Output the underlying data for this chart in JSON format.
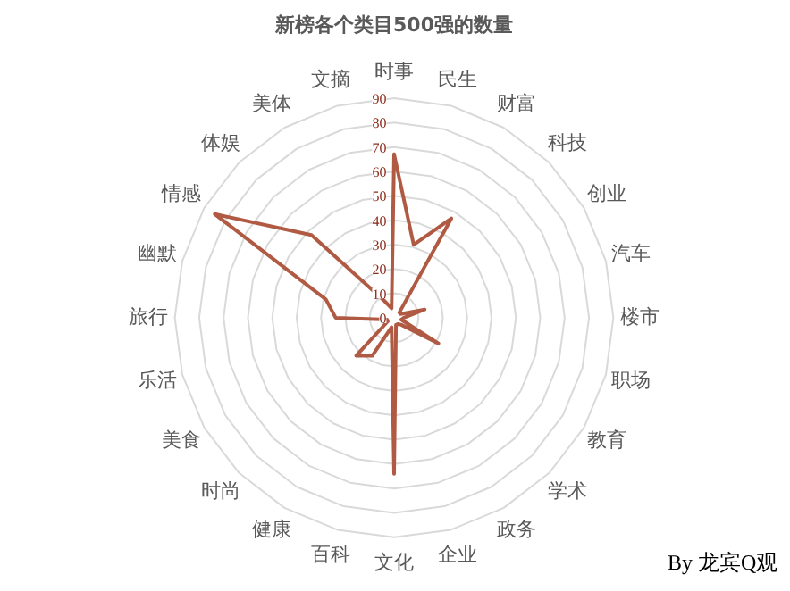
{
  "chart_data": {
    "type": "radar",
    "title": "新榜各个类目500强的数量",
    "categories": [
      "时事",
      "民生",
      "财富",
      "科技",
      "创业",
      "汽车",
      "楼市",
      "职场",
      "教育",
      "学术",
      "政务",
      "企业",
      "文化",
      "百科",
      "健康",
      "时尚",
      "美食",
      "乐活",
      "旅行",
      "幽默",
      "情感",
      "体娱",
      "美体",
      "文摘"
    ],
    "series": [
      {
        "color": "#b05a43",
        "values": [
          67,
          31,
          47,
          3,
          3,
          13,
          4,
          3,
          21,
          4,
          3,
          3,
          64,
          4,
          18,
          22,
          3,
          3,
          24,
          29,
          85,
          48,
          8,
          4
        ]
      }
    ],
    "ylim": [
      0,
      90
    ],
    "yticks": [
      0,
      10,
      20,
      30,
      40,
      50,
      60,
      70,
      80,
      90
    ],
    "grid": true,
    "annotations": [
      "By 龙宾Q观"
    ]
  }
}
